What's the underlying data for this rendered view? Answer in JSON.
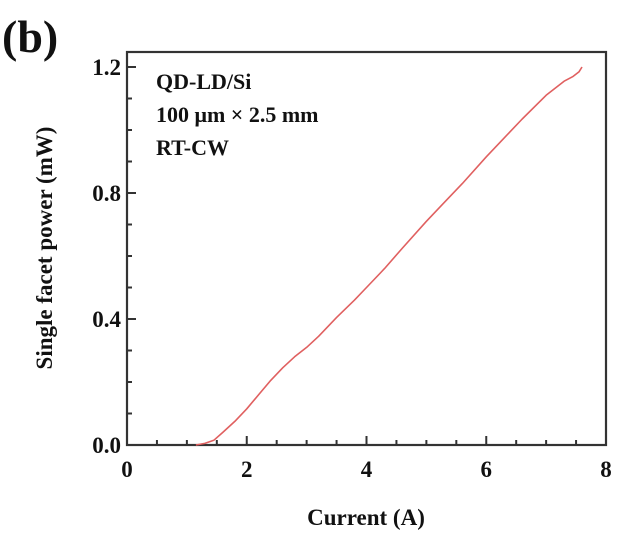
{
  "panel_label": "(b)",
  "chart_data": {
    "type": "line",
    "title": "",
    "xlabel": "Current (A)",
    "ylabel": "Single facet power (mW)",
    "xlim": [
      0,
      8
    ],
    "ylim": [
      0,
      1.2
    ],
    "x_ticks": [
      0,
      2,
      4,
      6,
      8
    ],
    "x_tick_labels": [
      "0",
      "2",
      "4",
      "6",
      "8"
    ],
    "y_ticks": [
      0.0,
      0.4,
      0.8,
      1.2
    ],
    "y_tick_labels": [
      "0.0",
      "0.4",
      "0.8",
      "1.2"
    ],
    "x_minor_step": 0.5,
    "y_minor_step": 0.1,
    "grid": false,
    "annotations": [
      "QD-LD/Si",
      "100 μm × 2.5 mm",
      "RT-CW"
    ],
    "series": [
      {
        "name": "QD-LD/Si",
        "color": "#e06060",
        "x": [
          1.15,
          1.3,
          1.45,
          1.6,
          1.8,
          2.0,
          2.2,
          2.4,
          2.6,
          2.8,
          3.0,
          3.2,
          3.5,
          3.8,
          4.0,
          4.3,
          4.6,
          5.0,
          5.3,
          5.6,
          6.0,
          6.3,
          6.6,
          7.0,
          7.3,
          7.45,
          7.55,
          7.6
        ],
        "y": [
          0.0,
          0.005,
          0.015,
          0.04,
          0.075,
          0.115,
          0.16,
          0.205,
          0.245,
          0.28,
          0.31,
          0.345,
          0.405,
          0.46,
          0.5,
          0.56,
          0.625,
          0.71,
          0.77,
          0.83,
          0.915,
          0.975,
          1.035,
          1.11,
          1.155,
          1.17,
          1.185,
          1.2
        ]
      }
    ]
  }
}
